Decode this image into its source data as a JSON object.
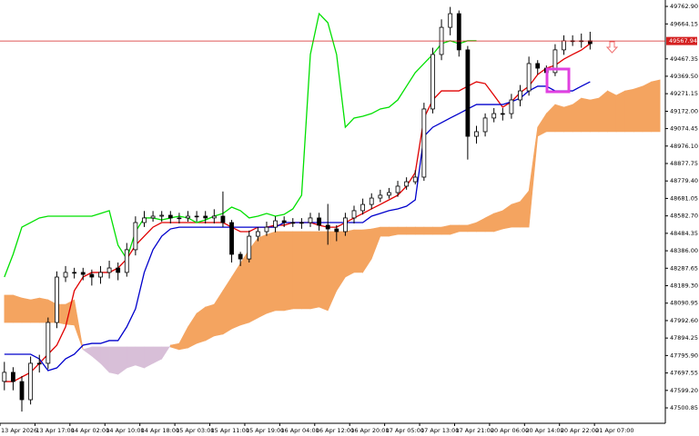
{
  "chart_data": {
    "type": "candlestick",
    "categories": [
      "13 Apr 2026",
      null,
      null,
      null,
      "13 Apr 17:00",
      null,
      null,
      null,
      "14 Apr 02:00",
      null,
      null,
      null,
      "14 Apr 10:00",
      null,
      null,
      null,
      "14 Apr 18:00",
      null,
      null,
      null,
      "15 Apr 03:00",
      null,
      null,
      null,
      "15 Apr 11:00",
      null,
      null,
      null,
      "15 Apr 19:00",
      null,
      null,
      null,
      "16 Apr 04:00",
      null,
      null,
      null,
      "16 Apr 12:00",
      null,
      null,
      null,
      "16 Apr 20:00",
      null,
      null,
      null,
      "17 Apr 05:00",
      null,
      null,
      null,
      "17 Apr 13:00",
      null,
      null,
      null,
      "17 Apr 21:00",
      null,
      null,
      null,
      "20 Apr 06:00",
      null,
      null,
      null,
      "20 Apr 14:00",
      null,
      null,
      null,
      "20 Apr 22:00",
      null,
      null,
      null,
      "21 Apr 07:00",
      null,
      null,
      null,
      null,
      null,
      null,
      null
    ],
    "open": [
      47650,
      47701,
      47649,
      47547,
      47752,
      47752,
      47982,
      48238,
      48264,
      48264,
      48253,
      48238,
      48264,
      48289,
      48264,
      48392,
      48545,
      48571,
      48581,
      48586,
      48571,
      48571,
      48581,
      48581,
      48571,
      48581,
      48545,
      48366,
      48340,
      48468,
      48494,
      48519,
      48555,
      48545,
      48545,
      48545,
      48571,
      48530,
      48509,
      48494,
      48571,
      48612,
      48647,
      48683,
      48699,
      48714,
      48750,
      48775,
      48801,
      49185,
      49492,
      49645,
      49722,
      49518,
      49031,
      49057,
      49134,
      49159,
      49159,
      49236,
      49287,
      49441,
      49415,
      49390,
      49518,
      49569,
      49569,
      49569,
      null,
      null,
      null,
      null,
      null,
      null,
      null,
      null
    ],
    "high": [
      47760,
      47730,
      47680,
      47790,
      47800,
      48010,
      48270,
      48300,
      48290,
      48290,
      48280,
      48300,
      48330,
      48320,
      48430,
      48580,
      48610,
      48610,
      48610,
      48610,
      48600,
      48610,
      48610,
      48610,
      48620,
      48720,
      48560,
      48380,
      48500,
      48520,
      48550,
      48580,
      48580,
      48570,
      48570,
      48600,
      48600,
      48650,
      48530,
      48600,
      48640,
      48680,
      48710,
      48730,
      48740,
      48780,
      48800,
      48840,
      49220,
      49530,
      49690,
      49760,
      49740,
      49540,
      49090,
      49160,
      49190,
      49190,
      49270,
      49320,
      49480,
      49460,
      49430,
      49550,
      49600,
      49600,
      49610,
      49620,
      null,
      null,
      null,
      null,
      null,
      null,
      null,
      null
    ],
    "low": [
      47600,
      47600,
      47480,
      47520,
      47700,
      47720,
      47950,
      48210,
      48230,
      48220,
      48190,
      48200,
      48230,
      48220,
      48240,
      48360,
      48520,
      48550,
      48550,
      48540,
      48540,
      48550,
      48550,
      48540,
      48540,
      48520,
      48320,
      48300,
      48320,
      48440,
      48470,
      48490,
      48520,
      48520,
      48510,
      48520,
      48500,
      48420,
      48440,
      48470,
      48540,
      48590,
      48620,
      48660,
      48680,
      48690,
      48730,
      48760,
      48780,
      49160,
      49460,
      49600,
      49480,
      48900,
      48990,
      49030,
      49110,
      49120,
      49130,
      49200,
      49260,
      49380,
      49350,
      49370,
      49490,
      49540,
      49530,
      49520,
      null,
      null,
      null,
      null,
      null,
      null,
      null,
      null
    ],
    "close": [
      47701,
      47649,
      47547,
      47752,
      47752,
      47982,
      48238,
      48264,
      48264,
      48253,
      48238,
      48264,
      48289,
      48264,
      48392,
      48545,
      48571,
      48581,
      48586,
      48571,
      48571,
      48581,
      48581,
      48571,
      48581,
      48545,
      48366,
      48340,
      48468,
      48494,
      48519,
      48555,
      48545,
      48545,
      48545,
      48571,
      48530,
      48509,
      48494,
      48571,
      48612,
      48647,
      48683,
      48699,
      48714,
      48750,
      48775,
      48801,
      49185,
      49492,
      49645,
      49722,
      49518,
      49031,
      49057,
      49134,
      49159,
      49159,
      49236,
      49287,
      49441,
      49415,
      49390,
      49518,
      49569,
      49569,
      49569,
      49553,
      null,
      null,
      null,
      null,
      null,
      null,
      null,
      null
    ],
    "lines": [
      {
        "color": "#e00000",
        "values": [
          47649,
          47649,
          47675,
          47701,
          47752,
          47803,
          47854,
          47957,
          48161,
          48238,
          48264,
          48264,
          48264,
          48289,
          48340,
          48417,
          48468,
          48519,
          48545,
          48545,
          48545,
          48545,
          48545,
          48545,
          48545,
          48545,
          48519,
          48494,
          48494,
          48519,
          48519,
          48530,
          48530,
          48545,
          48545,
          48545,
          48530,
          48519,
          48519,
          48545,
          48571,
          48596,
          48622,
          48647,
          48673,
          48699,
          48750,
          48827,
          49134,
          49236,
          49287,
          49287,
          49287,
          49313,
          49338,
          49328,
          49262,
          49195,
          49226,
          49277,
          49313,
          49379,
          49415,
          49431,
          49466,
          49492,
          49517,
          49553,
          null,
          null,
          null,
          null,
          null,
          null,
          null,
          null
        ]
      },
      {
        "color": "#0000cc",
        "values": [
          47803,
          47803,
          47803,
          47803,
          47777,
          47711,
          47726,
          47777,
          47803,
          47854,
          47864,
          47864,
          47880,
          47880,
          47957,
          48059,
          48264,
          48392,
          48468,
          48509,
          48519,
          48519,
          48519,
          48519,
          48519,
          48519,
          48519,
          48519,
          48519,
          48519,
          48519,
          48519,
          48545,
          48545,
          48545,
          48545,
          48545,
          48545,
          48545,
          48545,
          48545,
          48545,
          48581,
          48596,
          48612,
          48622,
          48637,
          48673,
          49031,
          49082,
          49108,
          49134,
          49159,
          49185,
          49210,
          49210,
          49210,
          49210,
          49226,
          49246,
          49287,
          49313,
          49313,
          49287,
          49287,
          49287,
          49313,
          49338,
          null,
          null,
          null,
          null,
          null,
          null,
          null,
          null
        ]
      },
      {
        "color": "#00e000",
        "values": [
          48238,
          48366,
          48519,
          48545,
          48571,
          48581,
          48581,
          48581,
          48581,
          48581,
          48581,
          48596,
          48612,
          48417,
          48340,
          48494,
          48571,
          48571,
          48560,
          48571,
          48581,
          48571,
          48545,
          48560,
          48581,
          48596,
          48632,
          48612,
          48571,
          48581,
          48596,
          48581,
          48591,
          48622,
          48699,
          49492,
          49722,
          49671,
          49492,
          49082,
          49134,
          49144,
          49159,
          49185,
          49195,
          49236,
          49313,
          49390,
          49441,
          49492,
          49553,
          49569,
          49553,
          49569,
          49569,
          null,
          null,
          null,
          null,
          null,
          null,
          null,
          null,
          null,
          null,
          null,
          null,
          null,
          null,
          null,
          null,
          null,
          null,
          null,
          null,
          null
        ]
      }
    ],
    "senkou_a": [
      48136,
      48136,
      48120,
      48110,
      48120,
      48110,
      48084,
      48084,
      48110,
      47829,
      47793,
      47752,
      47701,
      47690,
      47726,
      47742,
      47726,
      47752,
      47777,
      47854,
      47864,
      47957,
      48033,
      48069,
      48084,
      48161,
      48238,
      48315,
      48392,
      48458,
      48478,
      48494,
      48494,
      48494,
      48494,
      48494,
      48494,
      48494,
      48494,
      48494,
      48504,
      48504,
      48509,
      48519,
      48519,
      48519,
      48519,
      48519,
      48519,
      48519,
      48519,
      48530,
      48530,
      48530,
      48545,
      48571,
      48596,
      48612,
      48647,
      48663,
      48724,
      49082,
      49159,
      49210,
      49195,
      49210,
      49246,
      49236,
      49246,
      49287,
      49262,
      49287,
      49297,
      49313,
      49338,
      49349
    ],
    "senkou_b": [
      47982,
      47982,
      47982,
      47982,
      47982,
      47982,
      47982,
      47972,
      47967,
      47829,
      47844,
      47844,
      47844,
      47844,
      47844,
      47844,
      47844,
      47844,
      47844,
      47844,
      47829,
      47839,
      47864,
      47880,
      47906,
      47916,
      47946,
      47967,
      47982,
      48008,
      48033,
      48049,
      48049,
      48059,
      48059,
      48059,
      48069,
      48049,
      48161,
      48238,
      48264,
      48264,
      48340,
      48468,
      48468,
      48478,
      48478,
      48478,
      48478,
      48478,
      48478,
      48478,
      48494,
      48494,
      48494,
      48494,
      48494,
      48509,
      48519,
      48519,
      48519,
      49031,
      49057,
      49057,
      49057,
      49057,
      49057,
      49057,
      49057,
      49057,
      49057,
      49057,
      49057,
      49057,
      49057,
      49057
    ],
    "colors": {
      "up": "#ffffff",
      "down": "#000000",
      "cloud_up": "#f4a460",
      "cloud_down": "#d8bfd8",
      "price_line": "#d42020"
    },
    "price_line": 49567.94,
    "ylim": [
      47414,
      49799
    ],
    "yticks": [
      {
        "value": 49762.9,
        "label": "49762.90"
      },
      49664.15,
      49467.35,
      {
        "value": 49369.5,
        "label": "49369.50"
      },
      49271.15,
      {
        "value": 49172,
        "label": "49172.00"
      },
      49074.45,
      {
        "value": 48976.1,
        "label": "48976.10"
      },
      48877.75,
      {
        "value": 48779.4,
        "label": "48779.40"
      },
      48681.05,
      {
        "value": 48582.7,
        "label": "48582.70"
      },
      48484.35,
      {
        "value": 48386,
        "label": "48386.00"
      },
      48287.65,
      {
        "value": 48189.3,
        "label": "48189.30"
      },
      48090.95,
      {
        "value": 47992.6,
        "label": "47992.60"
      },
      47894.25,
      {
        "value": 47795.9,
        "label": "47795.90"
      },
      47697.55,
      {
        "value": 47599.2,
        "label": "47599.20"
      },
      47500.85
    ],
    "grid": false
  }
}
